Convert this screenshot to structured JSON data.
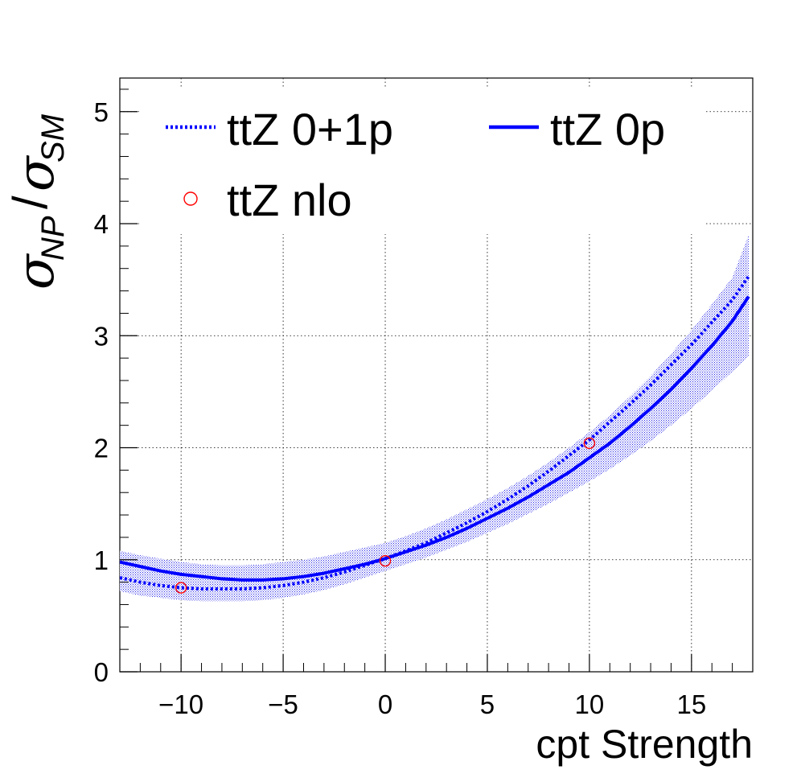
{
  "chart_data": {
    "type": "line",
    "title": "",
    "xlabel": "cpt Strength",
    "ylabel": {
      "symbol": "σ",
      "num_sub": "NP",
      "slash": "/",
      "den_sub": "SM"
    },
    "xlim": [
      -13,
      18
    ],
    "ylim": [
      0,
      5.3
    ],
    "x_ticks": [
      -10,
      -5,
      0,
      5,
      10,
      15
    ],
    "x_tick_labels": [
      "−10",
      "−5",
      "0",
      "5",
      "10",
      "15"
    ],
    "y_ticks": [
      0,
      1,
      2,
      3,
      4,
      5
    ],
    "y_tick_labels": [
      "0",
      "1",
      "2",
      "3",
      "4",
      "5"
    ],
    "grid": true,
    "legend_position": "top-left",
    "colors": {
      "line": "#0000ff",
      "band": "#3333ee",
      "marker": "#ff0000"
    },
    "series": [
      {
        "name": "ttZ 0+1p",
        "style": "dotted",
        "x": [
          -13,
          -12,
          -11,
          -10,
          -9,
          -8,
          -7,
          -6,
          -5,
          -4,
          -3,
          -2,
          -1,
          0,
          1,
          2,
          3,
          4,
          5,
          6,
          7,
          8,
          9,
          10,
          11,
          12,
          13,
          14,
          15,
          16,
          17,
          17.8
        ],
        "y": [
          0.84,
          0.8,
          0.77,
          0.75,
          0.74,
          0.74,
          0.74,
          0.75,
          0.77,
          0.8,
          0.84,
          0.89,
          0.95,
          1.01,
          1.08,
          1.15,
          1.24,
          1.33,
          1.43,
          1.54,
          1.66,
          1.79,
          1.93,
          2.07,
          2.23,
          2.39,
          2.56,
          2.74,
          2.92,
          3.12,
          3.32,
          3.53
        ]
      },
      {
        "name": "ttZ 0p",
        "style": "solid",
        "x": [
          -13,
          -12,
          -11,
          -10,
          -9,
          -8,
          -7,
          -6,
          -5,
          -4,
          -3,
          -2,
          -1,
          0,
          1,
          2,
          3,
          4,
          5,
          6,
          7,
          8,
          9,
          10,
          11,
          12,
          13,
          14,
          15,
          16,
          17,
          17.8
        ],
        "y": [
          0.98,
          0.94,
          0.9,
          0.87,
          0.85,
          0.83,
          0.82,
          0.82,
          0.83,
          0.85,
          0.88,
          0.92,
          0.96,
          1.01,
          1.07,
          1.13,
          1.2,
          1.28,
          1.37,
          1.46,
          1.56,
          1.67,
          1.78,
          1.91,
          2.04,
          2.19,
          2.35,
          2.52,
          2.71,
          2.91,
          3.13,
          3.35
        ]
      }
    ],
    "band": {
      "x": [
        -13,
        -12,
        -11,
        -10,
        -9,
        -8,
        -7,
        -6,
        -5,
        -4,
        -3,
        -2,
        -1,
        0,
        1,
        2,
        3,
        4,
        5,
        6,
        7,
        8,
        9,
        10,
        11,
        12,
        13,
        14,
        15,
        16,
        17,
        17.8
      ],
      "lower": [
        0.72,
        0.68,
        0.66,
        0.64,
        0.63,
        0.63,
        0.63,
        0.64,
        0.66,
        0.69,
        0.73,
        0.78,
        0.84,
        0.9,
        0.96,
        1.02,
        1.09,
        1.16,
        1.24,
        1.32,
        1.41,
        1.5,
        1.6,
        1.7,
        1.81,
        1.93,
        2.06,
        2.2,
        2.35,
        2.51,
        2.68,
        2.82
      ],
      "upper": [
        1.08,
        1.04,
        1.01,
        0.98,
        0.96,
        0.95,
        0.95,
        0.96,
        0.98,
        1.0,
        1.03,
        1.07,
        1.11,
        1.15,
        1.21,
        1.28,
        1.36,
        1.45,
        1.54,
        1.64,
        1.75,
        1.87,
        2.0,
        2.14,
        2.29,
        2.46,
        2.64,
        2.84,
        3.05,
        3.28,
        3.52,
        3.9
      ]
    },
    "points": {
      "name": "ttZ nlo",
      "x": [
        -10,
        0,
        10
      ],
      "y": [
        0.75,
        0.99,
        2.04
      ]
    }
  }
}
